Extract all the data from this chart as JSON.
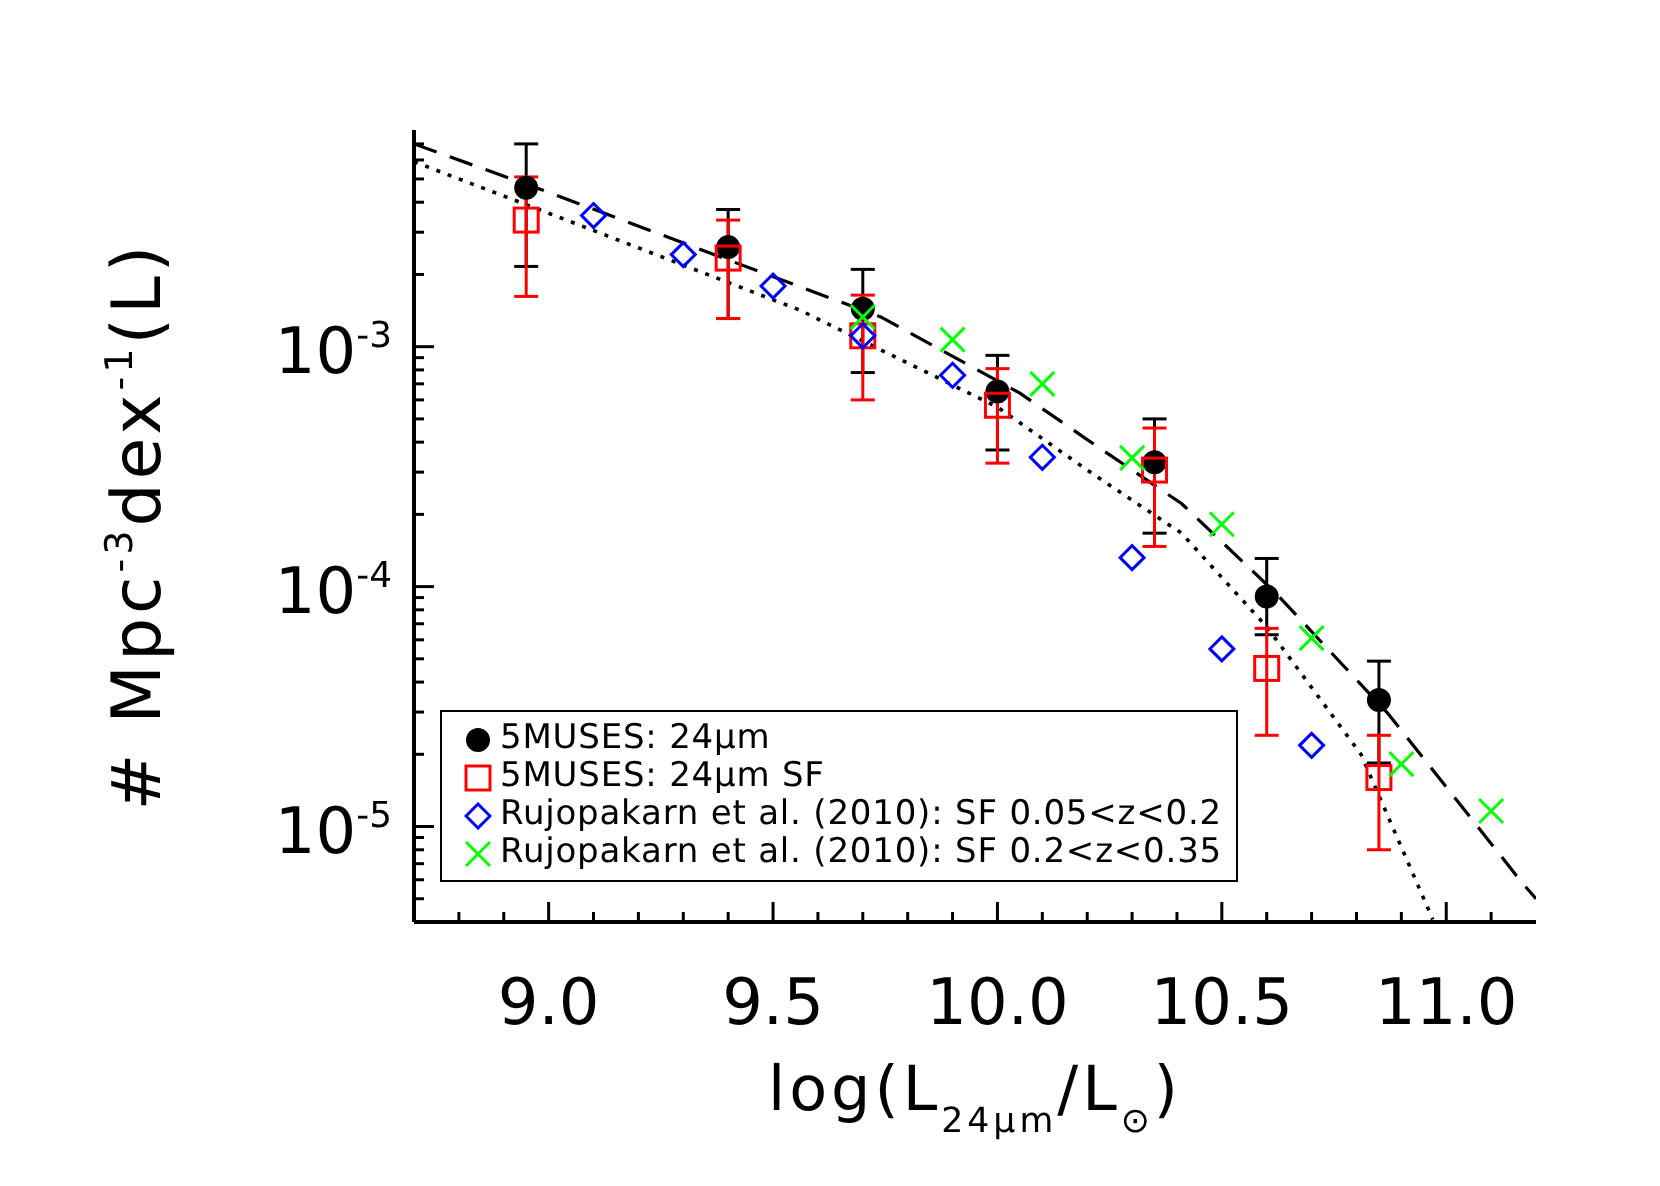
{
  "chart_data": {
    "type": "scatter",
    "xlabel": "log(L$_{24μm}$/L$_{⊙}$)",
    "ylabel": "# Mpc$^{-3}$dex$^{-1}$(L)",
    "log": "y",
    "legend": "bottom left",
    "xlim": [
      8.7,
      11.2
    ],
    "ylim": [
      4e-06,
      0.008
    ],
    "xticks": [
      {
        "value": 8.8,
        "label": null
      },
      {
        "value": 8.9,
        "label": null
      },
      {
        "value": 9,
        "label": "9.0"
      },
      {
        "value": 9.1,
        "label": null
      },
      {
        "value": 9.2,
        "label": null
      },
      {
        "value": 9.3,
        "label": null
      },
      {
        "value": 9.4,
        "label": null
      },
      9.5,
      {
        "value": 9.6,
        "label": null
      },
      {
        "value": 9.7,
        "label": null
      },
      {
        "value": 9.8,
        "label": null
      },
      {
        "value": 9.9,
        "label": null
      },
      {
        "value": 10,
        "label": "10.0"
      },
      {
        "value": 10.1,
        "label": null
      },
      {
        "value": 10.2,
        "label": null
      },
      {
        "value": 10.3,
        "label": null
      },
      {
        "value": 10.4,
        "label": null
      },
      10.5,
      {
        "value": 10.6,
        "label": null
      },
      {
        "value": 10.7,
        "label": null
      },
      {
        "value": 10.8,
        "label": null
      },
      {
        "value": 10.9,
        "label": null
      },
      {
        "value": 11,
        "label": "11.0"
      },
      {
        "value": 11.1,
        "label": null
      }
    ],
    "yticks": [
      {
        "value": 5e-06,
        "label": null
      },
      {
        "value": 6e-06,
        "label": null
      },
      {
        "value": 7e-06,
        "label": null
      },
      {
        "value": 8e-06,
        "label": null
      },
      {
        "value": 9e-06,
        "label": null
      },
      {
        "value": 1e-05,
        "label": "10$^{-5}$"
      },
      {
        "value": 2e-05,
        "label": null
      },
      {
        "value": 3e-05,
        "label": null
      },
      {
        "value": 4e-05,
        "label": null
      },
      {
        "value": 5e-05,
        "label": null
      },
      {
        "value": 6e-05,
        "label": null
      },
      {
        "value": 7e-05,
        "label": null
      },
      {
        "value": 8e-05,
        "label": null
      },
      {
        "value": 9e-05,
        "label": null
      },
      {
        "value": 0.0001,
        "label": "10$^{-4}$"
      },
      {
        "value": 0.0002,
        "label": null
      },
      {
        "value": 0.0003,
        "label": null
      },
      {
        "value": 0.0004,
        "label": null
      },
      {
        "value": 0.0005,
        "label": null
      },
      {
        "value": 0.0006,
        "label": null
      },
      {
        "value": 0.0007,
        "label": null
      },
      {
        "value": 0.0008,
        "label": null
      },
      {
        "value": 0.0009,
        "label": null
      },
      {
        "value": 0.001,
        "label": "10$^{-3}$"
      },
      {
        "value": 0.002,
        "label": null
      },
      {
        "value": 0.003,
        "label": null
      },
      {
        "value": 0.004,
        "label": null
      },
      {
        "value": 0.005,
        "label": null
      },
      {
        "value": 0.006,
        "label": null
      },
      {
        "value": 0.007,
        "label": null
      }
    ],
    "series": [
      {
        "name": "5MUSES: 24μm",
        "color": "#000000",
        "marker": "circle",
        "x": [
          8.95,
          9.4,
          9.7,
          10.0,
          10.35,
          10.6,
          10.85
        ],
        "values": [
          0.0046,
          0.0026,
          0.00144,
          0.00065,
          0.00033,
          9.1e-05,
          3.37e-05
        ],
        "errors": [
          [
            0.00216,
            0.007
          ],
          [
            0.00131,
            0.00373
          ],
          [
            0.00078,
            0.0021
          ],
          [
            0.000371,
            0.00092
          ],
          [
            0.000167,
            0.0005
          ],
          [
            6.3e-05,
            0.000131
          ],
          [
            1.84e-05,
            4.89e-05
          ]
        ]
      },
      {
        "name": "5MUSES: 24μm SF",
        "color": "#ff0000",
        "marker": "square",
        "x": [
          8.95,
          9.4,
          9.7,
          10.0,
          10.35,
          10.6,
          10.85
        ],
        "values": [
          0.00337,
          0.00234,
          0.00111,
          0.00057,
          0.000306,
          4.56e-05,
          1.6e-05
        ],
        "errors": [
          [
            0.00162,
            0.0051
          ],
          [
            0.00131,
            0.00337
          ],
          [
            0.0006,
            0.00164
          ],
          [
            0.000327,
            0.00081
          ],
          [
            0.000147,
            0.000458
          ],
          [
            2.4e-05,
            6.7e-05
          ],
          [
            8e-06,
            2.4e-05
          ]
        ]
      },
      {
        "name": "Rujopakarn et al. (2010): SF 0.05<z<0.2",
        "color": "#0000ff",
        "marker": "diamond",
        "x": [
          9.1,
          9.3,
          9.5,
          9.7,
          9.9,
          10.1,
          10.3,
          10.5,
          10.7
        ],
        "values": [
          0.00352,
          0.00242,
          0.00179,
          0.00111,
          0.00076,
          0.000346,
          0.000132,
          5.5e-05,
          2.18e-05
        ]
      },
      {
        "name": "Rujopakarn et al. (2010): SF 0.2<z<0.35",
        "color": "#00ff00",
        "marker": "cross",
        "x": [
          9.7,
          9.9,
          10.1,
          10.3,
          10.5,
          10.7,
          10.9,
          11.1
        ],
        "values": [
          0.00133,
          0.00107,
          0.0007,
          0.000344,
          0.000182,
          6.1e-05,
          1.82e-05,
          1.16e-05
        ]
      },
      {
        "type": "line",
        "color": "#000000",
        "marker": "none",
        "line_style": "dashed",
        "x": [
          8.7,
          9.0,
          9.4,
          9.74,
          10.05,
          10.2,
          10.41,
          10.62,
          10.87,
          11.17,
          11.2
        ],
        "values": [
          0.007,
          0.0044,
          0.0023,
          0.00133,
          0.00064,
          0.00041,
          0.000222,
          9.4e-05,
          2.96e-05,
          5.8e-06,
          5e-06
        ]
      },
      {
        "type": "line",
        "color": "#000000",
        "marker": "none",
        "line_style": "dotted",
        "x": [
          8.7,
          9.0,
          9.56,
          10.0,
          10.21,
          10.41,
          10.6,
          10.81,
          10.97
        ],
        "values": [
          0.0059,
          0.0036,
          0.00142,
          0.00056,
          0.000297,
          0.000167,
          6.8e-05,
          2e-05,
          4.1e-06
        ]
      }
    ]
  }
}
